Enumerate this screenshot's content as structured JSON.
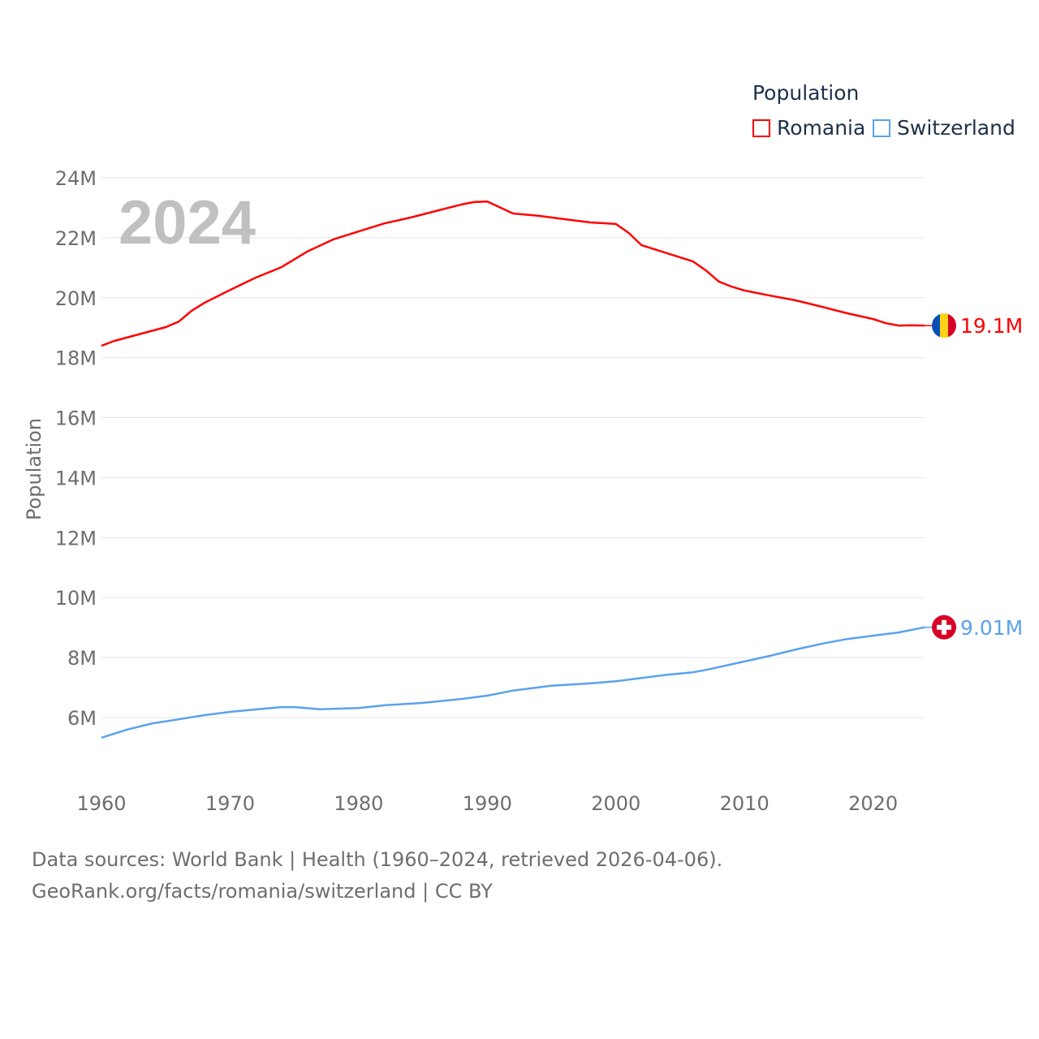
{
  "legend": {
    "title": "Population",
    "items": [
      {
        "label": "Romania",
        "color": "#ff0000"
      },
      {
        "label": "Switzerland",
        "color": "#5aa2ee"
      }
    ]
  },
  "year_label": "2024",
  "footer": {
    "line1": "Data sources: World Bank | Health (1960–2024, retrieved 2026-04-06).",
    "line2": "GeoRank.org/facts/romania/switzerland | CC BY"
  },
  "chart_data": {
    "type": "line",
    "title": "",
    "xlabel": "",
    "ylabel": "Population",
    "xlim": [
      1960,
      2024
    ],
    "ylim": [
      4.6,
      24
    ],
    "x_ticks": [
      1960,
      1970,
      1980,
      1990,
      2000,
      2010,
      2020
    ],
    "x_tick_labels": [
      "1960",
      "1970",
      "1980",
      "1990",
      "2000",
      "2010",
      "2020"
    ],
    "y_ticks": [
      6,
      8,
      10,
      12,
      14,
      16,
      18,
      20,
      22,
      24
    ],
    "y_tick_labels": [
      "6M",
      "8M",
      "10M",
      "12M",
      "14M",
      "16M",
      "18M",
      "20M",
      "22M",
      "24M"
    ],
    "grid": true,
    "legend_position": "top-right",
    "series": [
      {
        "name": "Romania",
        "color": "#ff0000",
        "end_label": "19.1M",
        "flag": "romania-flag",
        "points": [
          [
            1960,
            18.4
          ],
          [
            1961,
            18.56
          ],
          [
            1965,
            19.02
          ],
          [
            1966,
            19.2
          ],
          [
            1967,
            19.56
          ],
          [
            1968,
            19.83
          ],
          [
            1970,
            20.26
          ],
          [
            1972,
            20.67
          ],
          [
            1974,
            21.02
          ],
          [
            1976,
            21.54
          ],
          [
            1978,
            21.94
          ],
          [
            1980,
            22.21
          ],
          [
            1982,
            22.48
          ],
          [
            1984,
            22.67
          ],
          [
            1986,
            22.89
          ],
          [
            1988,
            23.11
          ],
          [
            1989,
            23.19
          ],
          [
            1990,
            23.21
          ],
          [
            1992,
            22.81
          ],
          [
            1994,
            22.73
          ],
          [
            1996,
            22.62
          ],
          [
            1998,
            22.51
          ],
          [
            2000,
            22.46
          ],
          [
            2001,
            22.16
          ],
          [
            2002,
            21.75
          ],
          [
            2004,
            21.48
          ],
          [
            2006,
            21.21
          ],
          [
            2007,
            20.91
          ],
          [
            2008,
            20.54
          ],
          [
            2009,
            20.37
          ],
          [
            2010,
            20.24
          ],
          [
            2012,
            20.07
          ],
          [
            2014,
            19.91
          ],
          [
            2016,
            19.7
          ],
          [
            2018,
            19.48
          ],
          [
            2020,
            19.29
          ],
          [
            2021,
            19.15
          ],
          [
            2022,
            19.07
          ],
          [
            2023,
            19.08
          ],
          [
            2024,
            19.07
          ]
        ]
      },
      {
        "name": "Switzerland",
        "color": "#5aa2ee",
        "end_label": "9.01M",
        "flag": "switzerland-flag",
        "points": [
          [
            1960,
            5.33
          ],
          [
            1962,
            5.6
          ],
          [
            1964,
            5.81
          ],
          [
            1966,
            5.94
          ],
          [
            1968,
            6.08
          ],
          [
            1970,
            6.19
          ],
          [
            1972,
            6.27
          ],
          [
            1974,
            6.35
          ],
          [
            1975,
            6.35
          ],
          [
            1977,
            6.28
          ],
          [
            1980,
            6.32
          ],
          [
            1982,
            6.41
          ],
          [
            1985,
            6.49
          ],
          [
            1988,
            6.62
          ],
          [
            1990,
            6.73
          ],
          [
            1992,
            6.9
          ],
          [
            1995,
            7.06
          ],
          [
            1998,
            7.14
          ],
          [
            2000,
            7.21
          ],
          [
            2002,
            7.32
          ],
          [
            2004,
            7.43
          ],
          [
            2006,
            7.51
          ],
          [
            2007,
            7.59
          ],
          [
            2010,
            7.87
          ],
          [
            2012,
            8.06
          ],
          [
            2014,
            8.27
          ],
          [
            2016,
            8.46
          ],
          [
            2018,
            8.62
          ],
          [
            2020,
            8.73
          ],
          [
            2022,
            8.84
          ],
          [
            2024,
            9.01
          ]
        ]
      }
    ]
  }
}
